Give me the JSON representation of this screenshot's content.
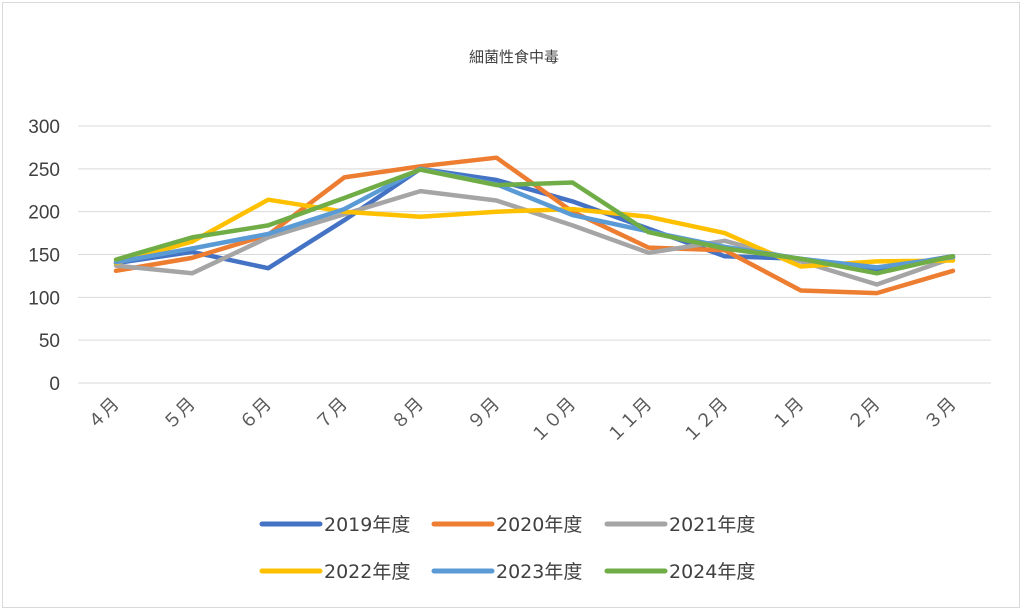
{
  "chart_data": {
    "type": "line",
    "title": "細菌性食中毒",
    "xlabel": "",
    "ylabel": "",
    "ylim": [
      0,
      300
    ],
    "yticks": [
      "0",
      "50",
      "100",
      "150",
      "200",
      "250",
      "300"
    ],
    "grid": true,
    "legend_position": "bottom",
    "categories": [
      "４月",
      "５月",
      "６月",
      "７月",
      "８月",
      "９月",
      "１０月",
      "１１月",
      "１２月",
      "１月",
      "２月",
      "３月"
    ],
    "series": [
      {
        "name": "2019年度",
        "color": "#4472C4",
        "values": [
          140,
          153,
          134,
          190,
          250,
          237,
          212,
          180,
          148,
          145,
          133,
          148
        ]
      },
      {
        "name": "2020年度",
        "color": "#ED7D31",
        "values": [
          131,
          146,
          173,
          240,
          253,
          263,
          200,
          158,
          155,
          108,
          105,
          131
        ]
      },
      {
        "name": "2021年度",
        "color": "#A5A5A5",
        "values": [
          137,
          128,
          170,
          197,
          224,
          213,
          184,
          152,
          166,
          142,
          115,
          146
        ]
      },
      {
        "name": "2022年度",
        "color": "#FFC000",
        "values": [
          140,
          165,
          214,
          200,
          194,
          200,
          203,
          194,
          175,
          136,
          142,
          143
        ]
      },
      {
        "name": "2023年度",
        "color": "#5B9BD5",
        "values": [
          141,
          157,
          174,
          203,
          250,
          232,
          196,
          177,
          159,
          145,
          135,
          147
        ]
      },
      {
        "name": "2024年度",
        "color": "#70AD47",
        "values": [
          144,
          170,
          184,
          216,
          249,
          231,
          234,
          176,
          157,
          145,
          128,
          148
        ]
      }
    ]
  }
}
